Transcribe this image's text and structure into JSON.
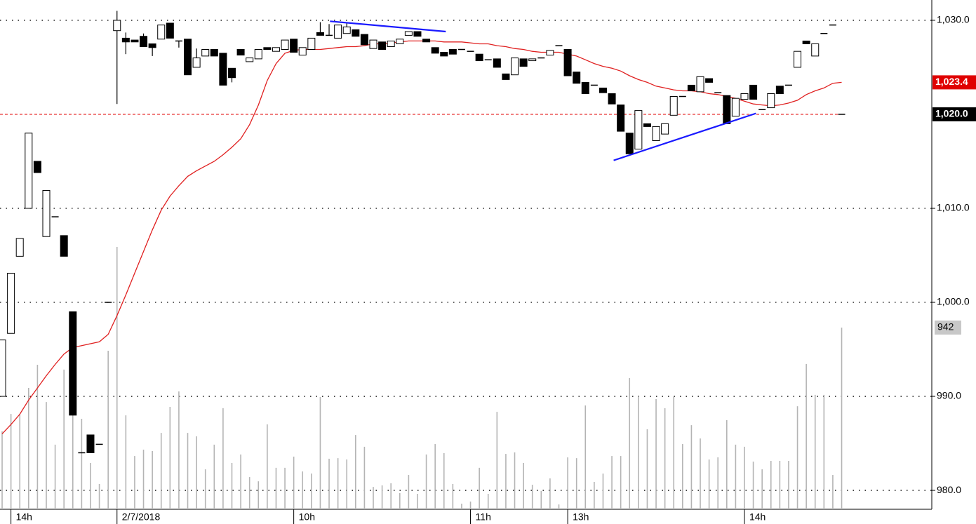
{
  "chart_data": {
    "type": "candlestick",
    "categories": [
      null,
      "14h",
      null,
      null,
      null,
      null,
      null,
      null,
      null,
      null,
      null,
      null,
      null,
      "2/7/2018",
      null,
      null,
      null,
      null,
      null,
      null,
      null,
      null,
      null,
      null,
      null,
      null,
      null,
      null,
      null,
      null,
      null,
      null,
      null,
      "10h",
      null,
      null,
      null,
      null,
      null,
      null,
      null,
      null,
      null,
      null,
      null,
      null,
      null,
      null,
      null,
      null,
      null,
      null,
      null,
      "11h",
      null,
      null,
      null,
      null,
      null,
      null,
      null,
      null,
      null,
      null,
      "13h",
      null,
      null,
      null,
      null,
      null,
      null,
      null,
      null,
      null,
      null,
      null,
      null,
      null,
      null,
      null,
      null,
      null,
      null,
      null,
      "14h",
      null,
      null,
      null,
      null,
      null,
      null,
      null,
      null,
      null,
      null,
      null
    ],
    "open": [
      990,
      996.7,
      1004.9,
      1010,
      1015,
      1007,
      1009.1,
      1007.1,
      999,
      984,
      985.9,
      984.9,
      1000,
      1028.9,
      1028.1,
      1027.9,
      1028.3,
      1027.5,
      1028,
      1029.7,
      1027.8,
      1028,
      1025,
      1026.2,
      1026.9,
      1026.5,
      1024.9,
      1026.9,
      1025.6,
      1025.9,
      1027.1,
      1026.7,
      1026.9,
      1028,
      1026.3,
      1026.9,
      1028.7,
      1028.4,
      1028.1,
      1028.6,
      1029,
      1028.5,
      1027,
      1027.7,
      1027.2,
      1027.5,
      1028.4,
      1028.8,
      1028,
      1027.1,
      1026.6,
      1026.9,
      1026.9,
      1026.7,
      1026.4,
      1025.8,
      1025.9,
      1024.3,
      1024.2,
      1025.9,
      1025.7,
      1026,
      1026.3,
      1027.3,
      1026.9,
      1024.5,
      1023.4,
      1023.1,
      1022.8,
      1022.2,
      1021,
      1018,
      1016.3,
      1019,
      1017.2,
      1017.9,
      1019.9,
      1021.9,
      1023.1,
      1022.4,
      1023.8,
      1022.3,
      1022,
      1019.8,
      1021.6,
      1023.1,
      1020.5,
      1020.7,
      1023,
      1023.1,
      1025,
      1027.8,
      1026.2,
      1028.6,
      1029.5,
      1020
    ],
    "high": [
      996,
      1003.1,
      1006.8,
      1018,
      1015,
      1011.9,
      1009.1,
      1007.1,
      999,
      984,
      985.9,
      984.9,
      1000,
      1031,
      1028.7,
      1027.9,
      1028.6,
      1027.5,
      1029.5,
      1029.7,
      1027.8,
      1028,
      1027,
      1026.9,
      1026.9,
      1026.5,
      1024.9,
      1026.9,
      1026,
      1026.9,
      1027.1,
      1027.1,
      1027.9,
      1028,
      1027.1,
      1028.1,
      1029.8,
      1029.6,
      1029.5,
      1029.7,
      1029,
      1028.5,
      1027.9,
      1027.7,
      1027.8,
      1028,
      1028.8,
      1028.8,
      1028,
      1027.1,
      1026.6,
      1026.9,
      1026.9,
      1026.7,
      1026.4,
      1025.8,
      1025.9,
      1024.3,
      1026,
      1025.9,
      1025.9,
      1026,
      1026.8,
      1027.3,
      1026.9,
      1024.5,
      1023.4,
      1023.1,
      1022.8,
      1022.2,
      1021,
      1018,
      1020.4,
      1019,
      1018.7,
      1019,
      1021.9,
      1021.9,
      1023.1,
      1024,
      1023.8,
      1022.3,
      1022,
      1021.7,
      1022.2,
      1023.1,
      1020.5,
      1022.2,
      1023,
      1023.1,
      1026.7,
      1027.8,
      1027.5,
      1028.6,
      1029.5,
      1020
    ],
    "low": [
      990,
      996.7,
      1004.9,
      1010,
      1013.8,
      1007,
      1009.1,
      1004.9,
      988,
      984,
      984,
      984.9,
      1000,
      1021.1,
      1026.4,
      1027.7,
      1027.2,
      1026.2,
      1028,
      1028.1,
      1027.1,
      1024.2,
      1025,
      1026.2,
      1026.2,
      1023.1,
      1023.4,
      1026.3,
      1025.6,
      1025.9,
      1026.9,
      1026.7,
      1026.9,
      1026.6,
      1026.3,
      1026.9,
      1028.4,
      1028.4,
      1028.1,
      1028.6,
      1028.3,
      1027.4,
      1027,
      1026.9,
      1027.2,
      1027.5,
      1028.4,
      1028.3,
      1027.7,
      1026.5,
      1026.2,
      1026.4,
      1026.9,
      1026.7,
      1025.7,
      1025.8,
      1025,
      1023.7,
      1024.2,
      1025.1,
      1025.7,
      1026,
      1026.3,
      1027.3,
      1024.1,
      1023.3,
      1022.2,
      1023.1,
      1022.3,
      1021.1,
      1018.2,
      1015.8,
      1016.3,
      1018.7,
      1017.2,
      1017.9,
      1019.9,
      1021.9,
      1022.5,
      1022.4,
      1023.4,
      1022.3,
      1019,
      1019.8,
      1021.6,
      1021.6,
      1020.5,
      1020.7,
      1022.2,
      1023.1,
      1025,
      1027.5,
      1026.2,
      1028.6,
      1029.5,
      1020
    ],
    "close": [
      996,
      1003.1,
      1006.8,
      1018,
      1013.8,
      1011.9,
      1009.1,
      1004.9,
      988,
      984,
      984,
      984.9,
      1000,
      1030,
      1027.7,
      1027.7,
      1027.2,
      1027.1,
      1029.5,
      1028.1,
      1027.8,
      1024.2,
      1026,
      1026.9,
      1026.2,
      1023.1,
      1023.9,
      1026.3,
      1026,
      1026.9,
      1026.9,
      1027.1,
      1027.9,
      1026.6,
      1027.1,
      1028.1,
      1028.4,
      1028.4,
      1029.5,
      1029.3,
      1028.3,
      1027.4,
      1027.9,
      1026.9,
      1027.8,
      1028,
      1028.8,
      1028.3,
      1027.7,
      1026.5,
      1026.2,
      1026.4,
      1026.9,
      1026.7,
      1025.7,
      1025.8,
      1025,
      1023.7,
      1026,
      1025.1,
      1025.9,
      1026,
      1026.8,
      1027.3,
      1024.1,
      1023.3,
      1022.2,
      1023.1,
      1022.3,
      1021.1,
      1018.2,
      1015.8,
      1020.4,
      1018.7,
      1018.7,
      1019,
      1021.9,
      1021.9,
      1022.5,
      1024,
      1023.4,
      1022.3,
      1019,
      1021.7,
      1022.2,
      1021.6,
      1020.5,
      1022.2,
      1022.2,
      1023.1,
      1026.7,
      1027.5,
      1027.5,
      1028.6,
      1029.5,
      1020
    ],
    "xlim": [
      -0.24,
      105.2
    ],
    "ylim": [
      977.99,
      1032.16
    ],
    "yticks": [
      {
        "value": 980,
        "label": "980.0"
      },
      {
        "value": 990,
        "label": "990.0"
      },
      {
        "value": 1000,
        "label": "1,000.0"
      },
      {
        "value": 1010,
        "label": "1,010.0"
      },
      {
        "value": 1030,
        "label": "1,030.0"
      }
    ],
    "grid": true,
    "volume": {
      "color": "#b4b4b4",
      "lim": [
        0,
        2640
      ],
      "values": [
        404,
        494,
        494,
        629,
        749,
        556,
        335,
        724,
        604,
        469,
        240,
        131,
        822,
        1360,
        487,
        276,
        309,
        302,
        396,
        531,
        611,
        396,
        378,
        207,
        335,
        524,
        240,
        284,
        167,
        145,
        440,
        215,
        215,
        273,
        196,
        185,
        582,
        262,
        265,
        258,
        385,
        324,
        116,
        124,
        135,
        84,
        178,
        80,
        284,
        338,
        291,
        131,
        29,
        40,
        215,
        80,
        505,
        287,
        295,
        240,
        127,
        95,
        160,
        25,
        269,
        265,
        538,
        142,
        185,
        276,
        276,
        680,
        585,
        415,
        571,
        524,
        585,
        338,
        436,
        367,
        258,
        269,
        462,
        335,
        324,
        247,
        207,
        251,
        251,
        251,
        534,
        753,
        593,
        593,
        178,
        942
      ]
    },
    "volume_label": 942,
    "ma": {
      "color": "#e02020",
      "values": [
        986.0,
        987.0,
        988.1,
        989.6,
        990.9,
        992.2,
        993.4,
        994.5,
        995.2,
        995.4,
        995.6,
        995.8,
        996.6,
        998.6,
        1000.8,
        1003.1,
        1005.4,
        1007.7,
        1009.8,
        1011.3,
        1012.4,
        1013.4,
        1014.0,
        1014.5,
        1015.0,
        1015.7,
        1016.5,
        1017.4,
        1018.9,
        1021.0,
        1023.6,
        1025.4,
        1026.5,
        1026.8,
        1026.9,
        1026.9,
        1026.9,
        1027.0,
        1027.1,
        1027.2,
        1027.2,
        1027.3,
        1027.5,
        1027.5,
        1027.6,
        1027.7,
        1027.8,
        1027.8,
        1027.8,
        1027.8,
        1027.7,
        1027.7,
        1027.7,
        1027.6,
        1027.5,
        1027.5,
        1027.3,
        1027.2,
        1027.0,
        1026.9,
        1026.7,
        1026.6,
        1026.6,
        1026.6,
        1026.4,
        1026.2,
        1025.8,
        1025.4,
        1025.1,
        1024.9,
        1024.6,
        1024.1,
        1023.7,
        1023.4,
        1023.0,
        1022.8,
        1022.6,
        1022.5,
        1022.5,
        1022.4,
        1022.2,
        1022.1,
        1021.9,
        1021.7,
        1021.4,
        1021.1,
        1021.0,
        1020.9,
        1021.0,
        1021.2,
        1021.5,
        1022.1,
        1022.5,
        1022.8,
        1023.3,
        1023.4
      ]
    },
    "trendlines": [
      {
        "color": "#1a1aff",
        "x": [
          37.1,
          50.2
        ],
        "y": [
          1029.9,
          1028.8
        ]
      },
      {
        "color": "#1a1aff",
        "x": [
          69.2,
          85.3
        ],
        "y": [
          1015.1,
          1020.1
        ]
      }
    ],
    "price_labels": [
      {
        "value": 1023.4,
        "label": "1,023.4",
        "color": "#e00000",
        "dashed_line": false
      },
      {
        "value": 1020,
        "label": "1,020.0",
        "color": "#000000",
        "dashed_line": true
      }
    ]
  }
}
